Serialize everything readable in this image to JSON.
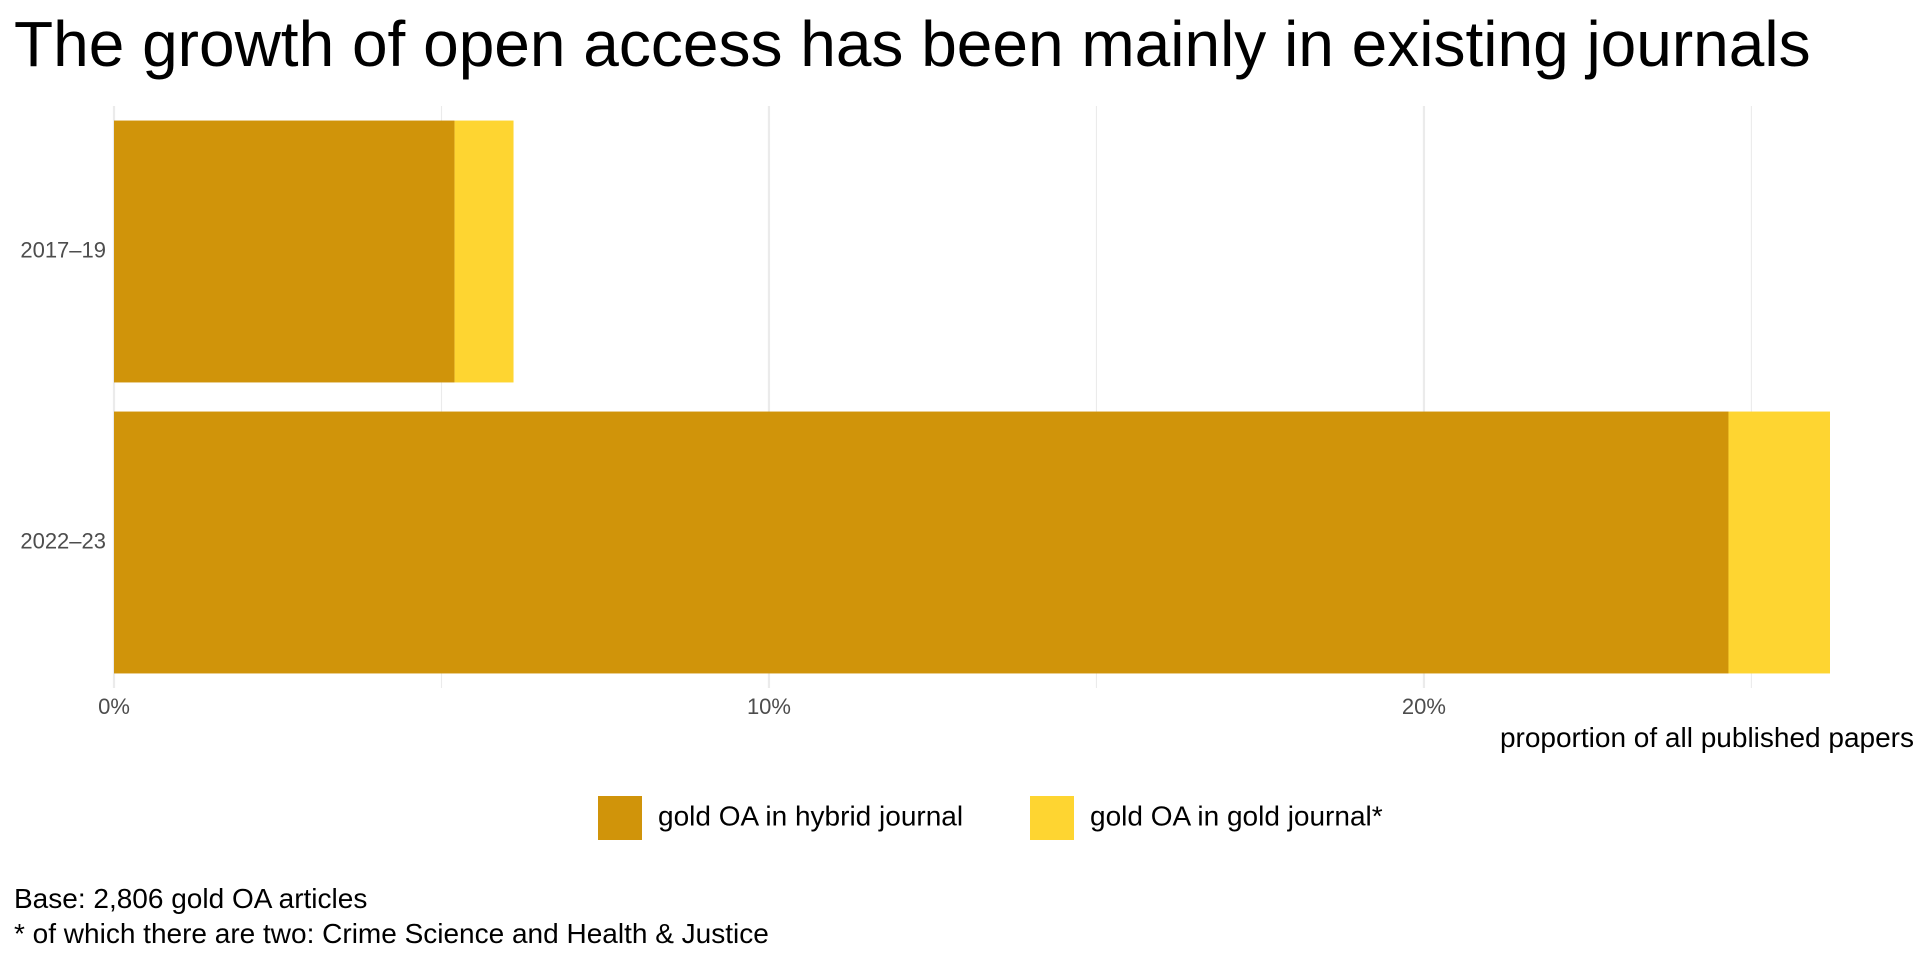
{
  "title": "The growth of open access has been mainly in existing journals",
  "chart_data": {
    "type": "bar",
    "orientation": "horizontal",
    "stacked": true,
    "categories": [
      "2017–19",
      "2022–23"
    ],
    "series": [
      {
        "name": "gold OA in hybrid journal",
        "color": "#D0940A",
        "values": [
          5.2,
          24.65
        ]
      },
      {
        "name": "gold OA in gold journal*",
        "color": "#FED531",
        "values": [
          0.9,
          1.55
        ]
      }
    ],
    "xlabel": "proportion of all published papers",
    "ylabel": "",
    "xlim": [
      0,
      26.2
    ],
    "xticks": [
      0,
      10,
      20
    ],
    "xtick_labels": [
      "0%",
      "10%",
      "20%"
    ],
    "grid": true,
    "legend": "bottom"
  },
  "captions": {
    "base": "Base: 2,806 gold OA articles",
    "note": "* of which there are two: Crime Science and Health & Justice"
  }
}
